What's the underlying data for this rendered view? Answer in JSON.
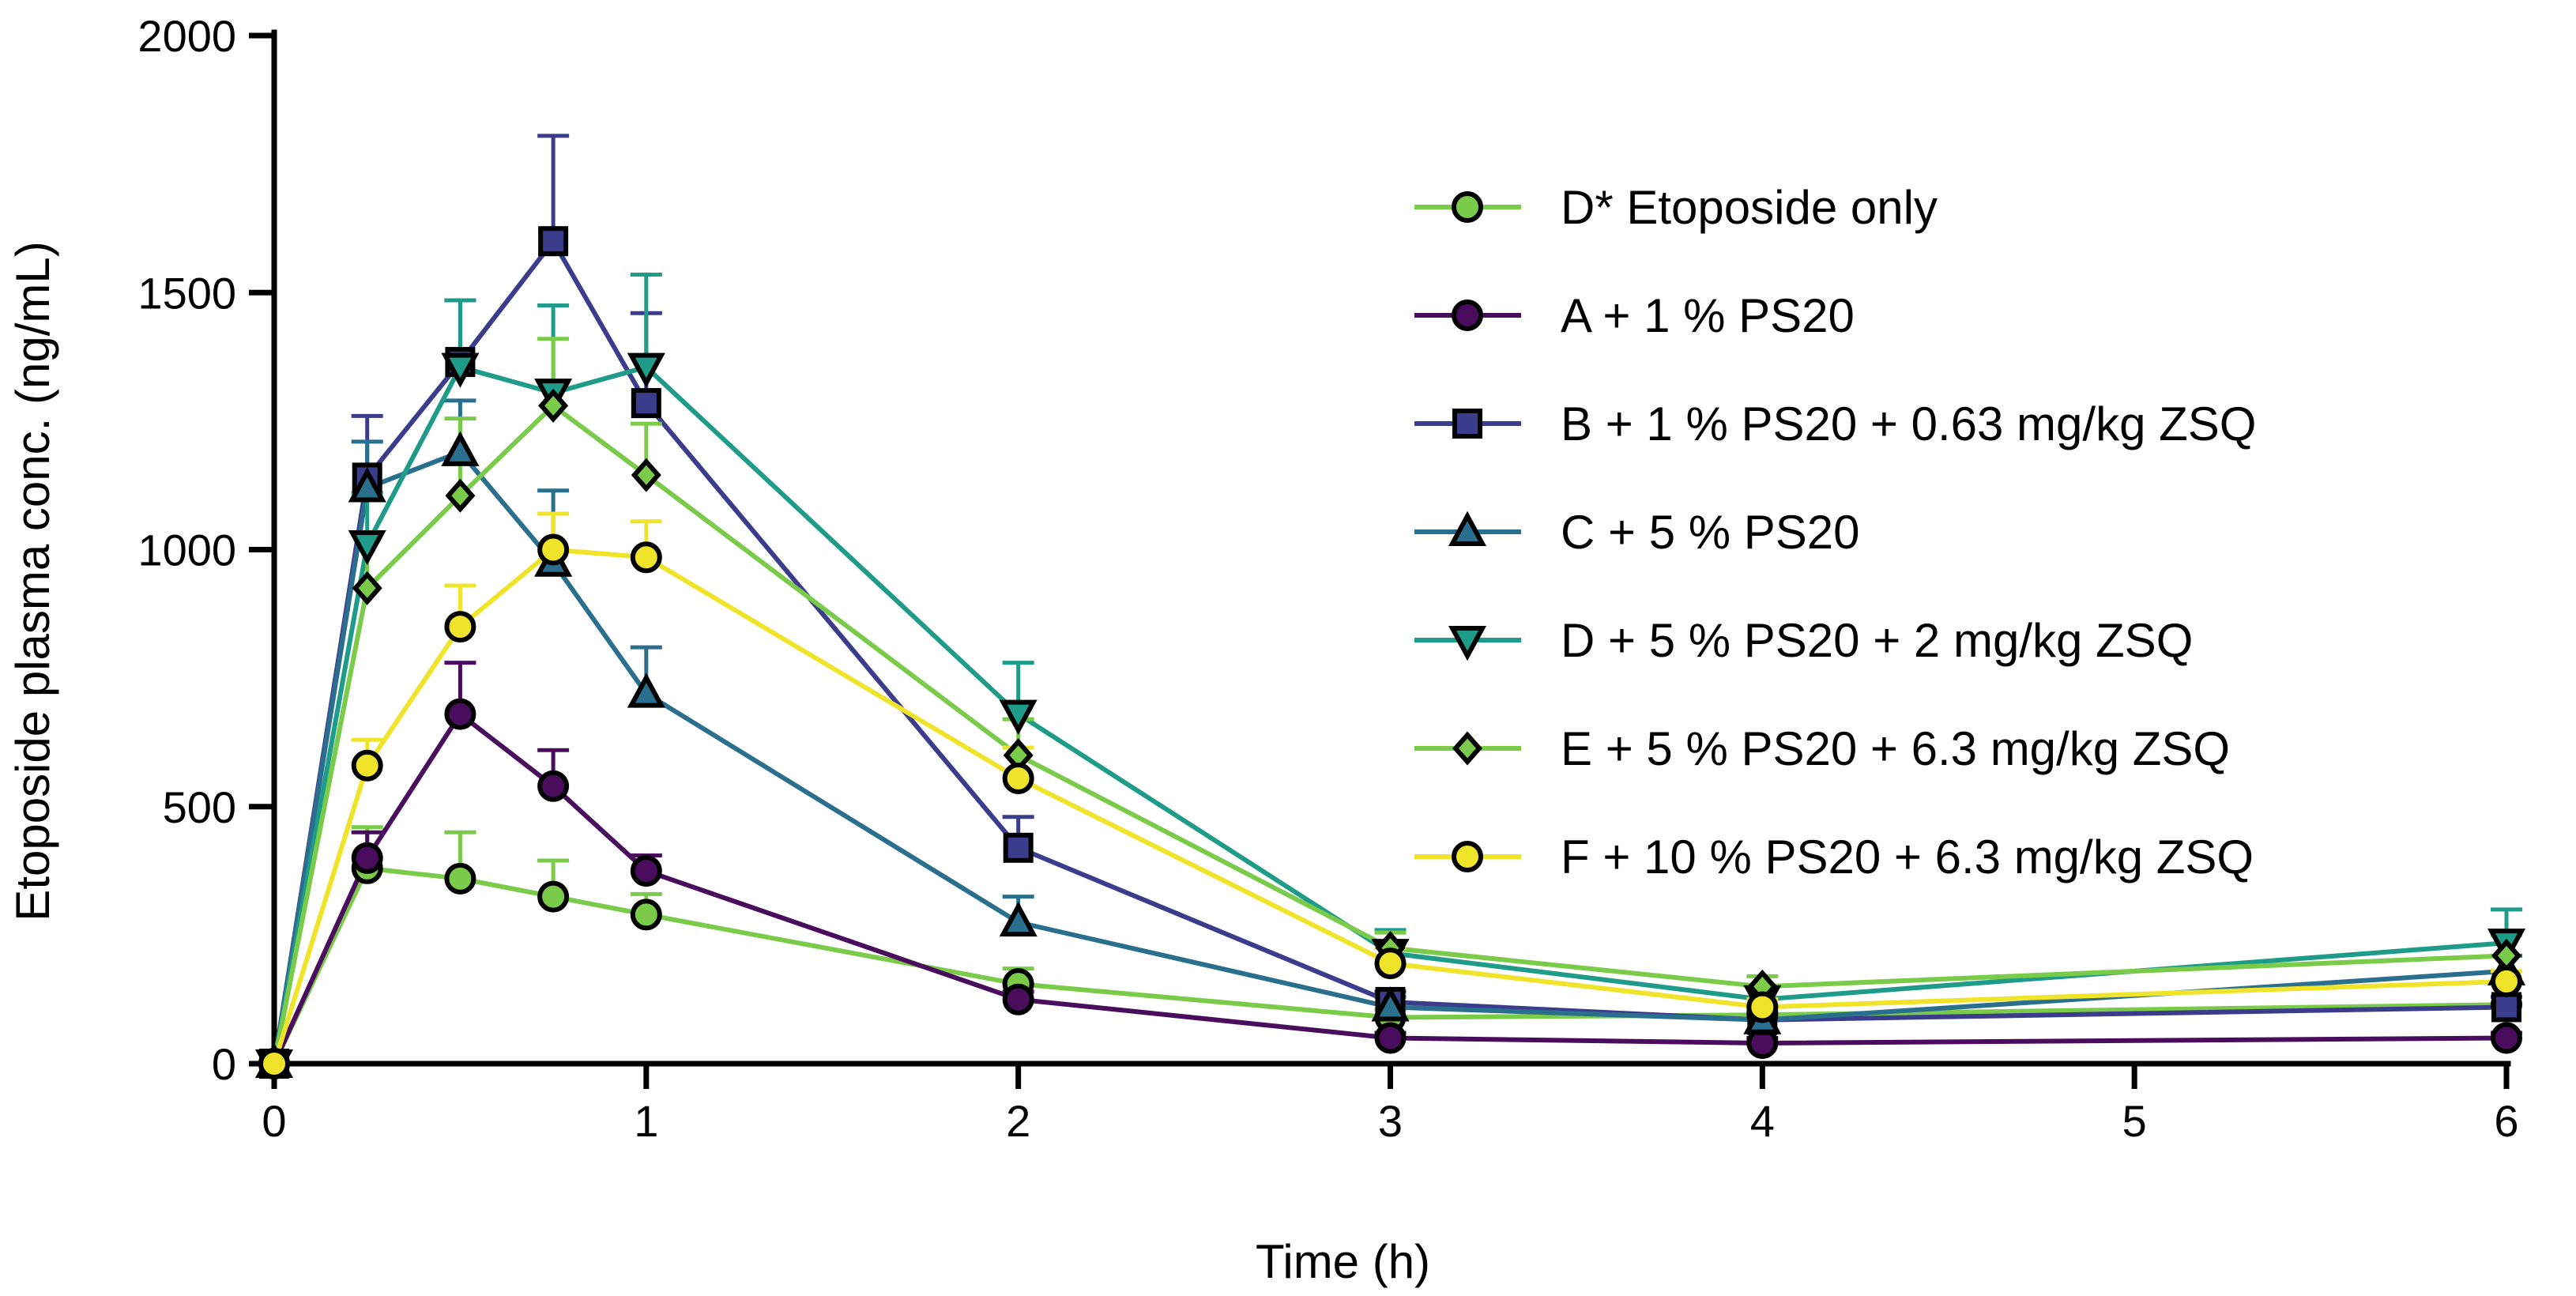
{
  "chart_data": {
    "type": "line",
    "title": "",
    "xlabel": "Time (h)",
    "ylabel": "Etoposide plasma conc. (ng/mL)",
    "xlim": [
      0,
      6
    ],
    "ylim": [
      0,
      2000
    ],
    "xticks": [
      "0",
      "1",
      "2",
      "3",
      "4",
      "5",
      "6"
    ],
    "yticks": [
      "0",
      "500",
      "1000",
      "1500",
      "2000"
    ],
    "grid": false,
    "legend_position": "top-right",
    "series": [
      {
        "name": "D* Etoposide only",
        "color": "#7ACB49",
        "marker": "circle",
        "x": [
          0,
          0.25,
          0.5,
          0.75,
          1,
          2,
          3,
          4,
          6
        ],
        "y": [
          0,
          380,
          360,
          325,
          290,
          155,
          90,
          95,
          115
        ],
        "err": [
          0,
          80,
          90,
          70,
          40,
          30,
          15,
          15,
          15
        ]
      },
      {
        "name": "A + 1 % PS20",
        "color": "#4A0D5E",
        "marker": "circle",
        "x": [
          0,
          0.25,
          0.5,
          0.75,
          1,
          2,
          3,
          4,
          6
        ],
        "y": [
          0,
          400,
          680,
          540,
          375,
          125,
          50,
          40,
          50
        ],
        "err": [
          0,
          50,
          100,
          70,
          30,
          15,
          10,
          10,
          10
        ]
      },
      {
        "name": "B + 1 % PS20 + 0.63 mg/kg ZSQ",
        "color": "#3C3C8C",
        "marker": "square",
        "x": [
          0,
          0.25,
          0.5,
          0.75,
          1,
          2,
          3,
          4,
          6
        ],
        "y": [
          0,
          1140,
          1365,
          1600,
          1285,
          420,
          120,
          85,
          110
        ],
        "err": [
          0,
          120,
          120,
          205,
          175,
          60,
          20,
          15,
          20
        ]
      },
      {
        "name": "C + 5 % PS20",
        "color": "#2B6F8E",
        "marker": "triangle-up",
        "x": [
          0,
          0.25,
          0.5,
          0.75,
          1,
          2,
          3,
          4,
          6
        ],
        "y": [
          0,
          1120,
          1190,
          975,
          720,
          275,
          110,
          85,
          180
        ],
        "err": [
          0,
          90,
          100,
          140,
          90,
          50,
          20,
          15,
          30
        ]
      },
      {
        "name": "D + 5 % PS20 + 2 mg/kg ZSQ",
        "color": "#1E9C89",
        "marker": "triangle-down",
        "x": [
          0,
          0.25,
          0.5,
          0.75,
          1,
          2,
          3,
          4,
          6
        ],
        "y": [
          0,
          1010,
          1355,
          1305,
          1355,
          680,
          215,
          125,
          235
        ],
        "err": [
          0,
          100,
          130,
          170,
          180,
          100,
          45,
          20,
          65
        ]
      },
      {
        "name": "E + 5 % PS20 + 6.3 mg/kg ZSQ",
        "color": "#7ACB49",
        "marker": "diamond",
        "x": [
          0,
          0.25,
          0.5,
          0.75,
          1,
          2,
          3,
          4,
          6
        ],
        "y": [
          0,
          925,
          1105,
          1280,
          1145,
          600,
          225,
          150,
          210
        ],
        "err": [
          0,
          105,
          150,
          130,
          100,
          70,
          30,
          20,
          40
        ]
      },
      {
        "name": "F + 10 % PS20 + 6.3 mg/kg ZSQ",
        "color": "#F0E42A",
        "marker": "circle",
        "x": [
          0,
          0.25,
          0.5,
          0.75,
          1,
          2,
          3,
          4,
          6
        ],
        "y": [
          0,
          580,
          850,
          1000,
          985,
          555,
          195,
          110,
          160
        ],
        "err": [
          0,
          50,
          80,
          70,
          70,
          60,
          30,
          15,
          20
        ]
      }
    ]
  }
}
